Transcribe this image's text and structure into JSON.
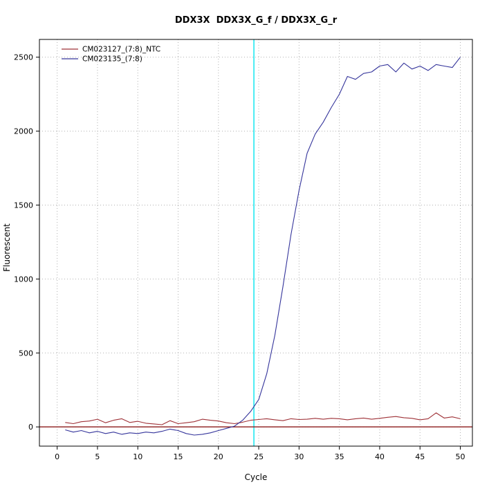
{
  "title": "DDX3X  DDX3X_G_f / DDX3X_G_r",
  "chart_data": {
    "type": "line",
    "title": "DDX3X  DDX3X_G_f / DDX3X_G_r",
    "xlabel": "Cycle",
    "ylabel": "Fluorescent",
    "xticks": [
      0,
      5,
      10,
      15,
      20,
      25,
      30,
      35,
      40,
      45,
      50
    ],
    "yticks": [
      0,
      500,
      1000,
      1500,
      2000,
      2500
    ],
    "axis_range": {
      "x": [
        -2.2,
        51.5
      ],
      "y": [
        -130,
        2620
      ]
    },
    "grid": "dotted",
    "grid_color": "#b0b0b0",
    "legend_position": "top-left",
    "threshold_line": {
      "y": 0,
      "color": "#8b1a1a"
    },
    "ct_line": {
      "x": 24.4,
      "color": "#00e5ee"
    },
    "series": [
      {
        "name": "CM023127_(7:8)_NTC",
        "color": "#9e3036",
        "x_start": 1,
        "values": [
          30,
          22,
          35,
          40,
          52,
          28,
          45,
          55,
          30,
          38,
          25,
          20,
          15,
          42,
          22,
          28,
          35,
          52,
          45,
          40,
          28,
          22,
          32,
          45,
          50,
          55,
          48,
          42,
          55,
          50,
          52,
          58,
          52,
          58,
          55,
          48,
          55,
          60,
          52,
          58,
          65,
          70,
          62,
          58,
          48,
          55,
          95,
          60,
          68,
          55
        ]
      },
      {
        "name": "CM023135_(7:8)",
        "color": "#34349b",
        "x_start": 1,
        "values": [
          -20,
          -35,
          -25,
          -40,
          -30,
          -45,
          -35,
          -50,
          -40,
          -45,
          -35,
          -40,
          -30,
          -15,
          -25,
          -45,
          -55,
          -50,
          -40,
          -25,
          -10,
          5,
          45,
          105,
          185,
          360,
          620,
          950,
          1300,
          1600,
          1850,
          1980,
          2060,
          2160,
          2250,
          2370,
          2350,
          2390,
          2400,
          2440,
          2450,
          2400,
          2460,
          2420,
          2440,
          2410,
          2450,
          2440,
          2430,
          2500
        ]
      }
    ]
  }
}
